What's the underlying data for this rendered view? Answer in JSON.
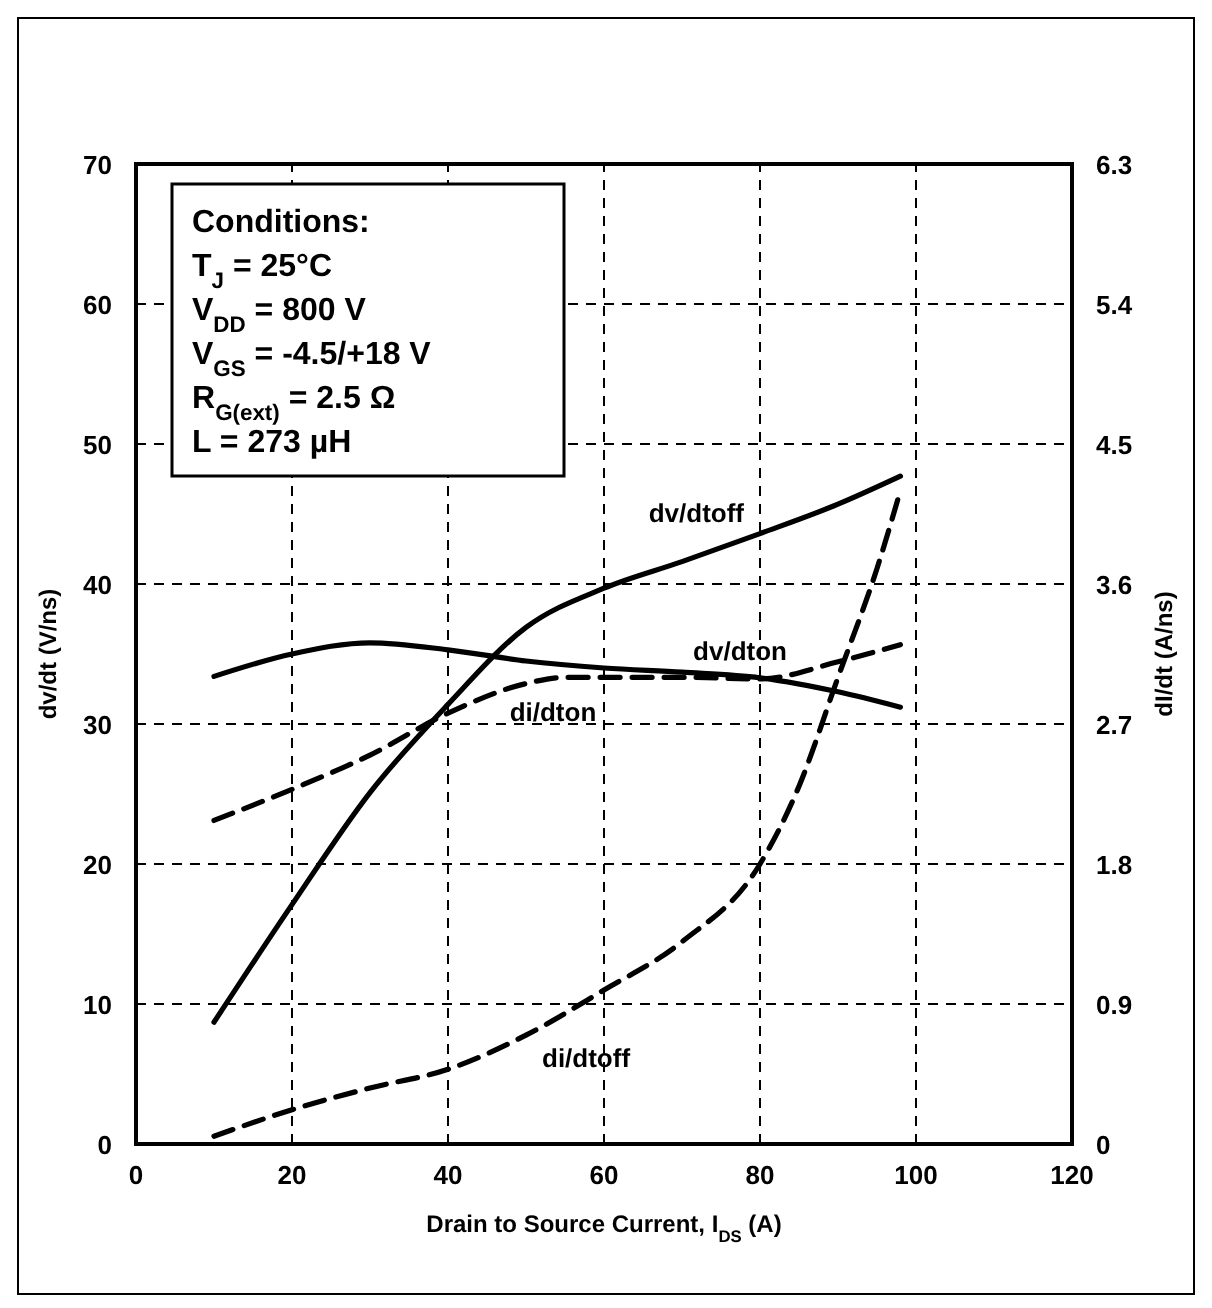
{
  "chart_data": {
    "type": "line",
    "xlabel": "Drain to Source Current, I$_{DS}$ (A)",
    "ylabel": "dv/dt (V/ns)",
    "y2label": "dI/dt (A/ns)",
    "xlim": [
      0,
      120
    ],
    "xticks": [
      0,
      20,
      40,
      60,
      80,
      100,
      120
    ],
    "ylim": [
      0,
      70
    ],
    "yticks": [
      0,
      10,
      20,
      30,
      40,
      50,
      60,
      70
    ],
    "y2lim": [
      0,
      6.3
    ],
    "y2ticks": [
      0,
      0.9,
      1.8,
      2.7,
      3.6,
      4.5,
      5.4,
      6.3
    ],
    "grid": true,
    "marker": "none",
    "series": [
      {
        "name": "dv/dtoff",
        "color": "#000000",
        "line_style": "solid",
        "x": [
          10,
          20,
          30,
          40,
          50,
          60,
          70,
          80,
          90,
          98
        ],
        "values": [
          8.7,
          17.1,
          25.1,
          31.4,
          36.9,
          39.7,
          41.6,
          43.6,
          45.7,
          47.7
        ]
      },
      {
        "name": "dv/dton",
        "color": "#000000",
        "line_style": "solid",
        "x": [
          10,
          20,
          30,
          40,
          50,
          60,
          70,
          80,
          90,
          98
        ],
        "values": [
          33.4,
          35.0,
          35.8,
          35.3,
          34.5,
          34.0,
          33.7,
          33.3,
          32.3,
          31.2
        ]
      },
      {
        "name": "di/dton",
        "color": "#000000",
        "line_style": "dashed",
        "axis": "y2",
        "x": [
          10,
          20,
          30,
          40,
          50,
          55,
          60,
          70,
          80,
          90,
          98
        ],
        "values": [
          2.08,
          2.28,
          2.5,
          2.77,
          2.96,
          3.0,
          3.0,
          3.0,
          2.99,
          3.1,
          3.21
        ]
      },
      {
        "name": "di/dtoff",
        "color": "#000000",
        "line_style": "dashed",
        "axis": "y2",
        "x": [
          10,
          20,
          30,
          40,
          50,
          60,
          70,
          80,
          85,
          90,
          95,
          98
        ],
        "values": [
          0.05,
          0.22,
          0.36,
          0.48,
          0.7,
          0.99,
          1.3,
          1.8,
          2.3,
          3.0,
          3.7,
          4.2
        ]
      }
    ],
    "annotations": [
      "Conditions:",
      "T$_{J}$ = 25°C",
      "V$_{DD}$ = 800 V",
      "V$_{GS}$ = -4.5/+18 V",
      "R$_{G(ext)}$ = 2.5 Ω",
      "L = 273 µH"
    ]
  }
}
